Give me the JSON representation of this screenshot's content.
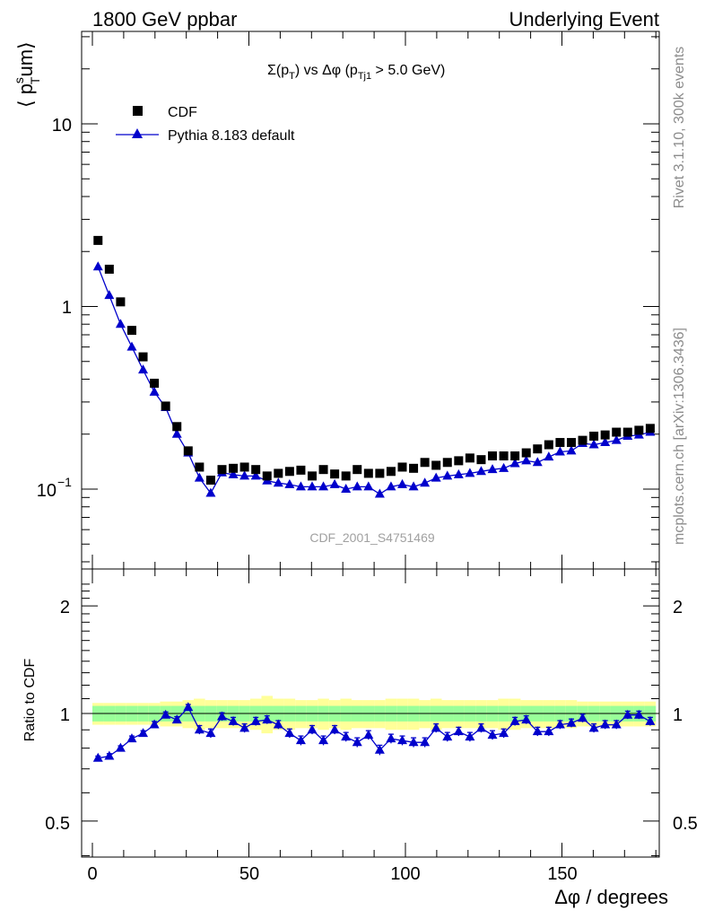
{
  "header": {
    "energy_label": "1800 GeV ppbar",
    "process_label": "Underlying Event"
  },
  "side_text": {
    "rivet": "Rivet 3.1.10,  300k events",
    "site": "mcplots.cern.ch [arXiv:1306.3436]"
  },
  "colors": {
    "cdf": "#000000",
    "pythia": "#0000cc",
    "band_inner": "#99ff99",
    "band_outer": "#ffff99"
  },
  "chart_data": [
    {
      "type": "scatter",
      "panel": "main",
      "title": "Σ(p_T) vs Δφ (p_Tj1 > 5.0 GeV)",
      "title_parts": {
        "sigma": "Σ(p",
        "sub_t": "T",
        "mid": ") vs Δφ (p",
        "sub_tj1": "Tj1",
        "end": " > 5.0 GeV)"
      },
      "ylabel": "⟨ p_T^sum⟩",
      "ylabel_parts": {
        "open": "⟨ p",
        "sup": "s",
        "sub": "T",
        "rest": "um⟩"
      },
      "yscale": "log",
      "ylim": [
        0.04,
        30
      ],
      "xlim": [
        -3.6,
        178.0
      ],
      "ytick_labels": {
        "ten": "10",
        "one": "1",
        "tenth_base": "10",
        "tenth_exp": "−1"
      },
      "watermark": "CDF_2001_S4751469",
      "legend": {
        "position": "top-left",
        "entries": [
          {
            "name": "CDF",
            "marker": "square"
          },
          {
            "name": "Pythia 8.183 default",
            "marker": "triangle-line"
          }
        ]
      },
      "x": [
        1.8,
        5.4,
        9.0,
        12.6,
        16.2,
        19.8,
        23.4,
        27.0,
        30.6,
        34.2,
        37.8,
        41.4,
        45.0,
        48.6,
        52.2,
        55.8,
        59.4,
        63.0,
        66.6,
        70.2,
        73.8,
        77.4,
        81.0,
        84.6,
        88.2,
        91.8,
        95.4,
        99.0,
        102.6,
        106.2,
        109.8,
        113.4,
        117.0,
        120.6,
        124.2,
        127.8,
        131.4,
        135.0,
        138.6,
        142.2,
        145.8,
        149.4,
        153.0,
        156.6,
        160.2,
        163.8,
        167.4,
        171.0,
        174.6,
        178.2
      ],
      "series": [
        {
          "name": "CDF",
          "values": [
            2.3,
            1.6,
            1.06,
            0.74,
            0.53,
            0.38,
            0.285,
            0.22,
            0.162,
            0.132,
            0.112,
            0.128,
            0.13,
            0.132,
            0.128,
            0.118,
            0.122,
            0.125,
            0.127,
            0.118,
            0.128,
            0.121,
            0.118,
            0.128,
            0.122,
            0.122,
            0.125,
            0.132,
            0.13,
            0.14,
            0.135,
            0.14,
            0.143,
            0.148,
            0.145,
            0.152,
            0.152,
            0.152,
            0.158,
            0.166,
            0.175,
            0.18,
            0.18,
            0.185,
            0.195,
            0.198,
            0.205,
            0.205,
            0.21,
            0.215
          ]
        },
        {
          "name": "Pythia 8.183 default",
          "values": [
            1.65,
            1.15,
            0.8,
            0.6,
            0.45,
            0.34,
            0.28,
            0.2,
            0.158,
            0.115,
            0.095,
            0.123,
            0.12,
            0.118,
            0.118,
            0.111,
            0.108,
            0.106,
            0.103,
            0.103,
            0.103,
            0.106,
            0.1,
            0.103,
            0.103,
            0.094,
            0.103,
            0.106,
            0.103,
            0.108,
            0.115,
            0.118,
            0.12,
            0.122,
            0.125,
            0.128,
            0.13,
            0.138,
            0.143,
            0.14,
            0.15,
            0.16,
            0.162,
            0.178,
            0.175,
            0.18,
            0.185,
            0.195,
            0.198,
            0.205
          ]
        }
      ]
    },
    {
      "type": "line",
      "panel": "ratio",
      "ylabel": "Ratio to CDF",
      "ylim": [
        0.38,
        2.4
      ],
      "xlim": [
        -3.6,
        178.0
      ],
      "xlabel": "Δφ / degrees",
      "xtick_labels": [
        "0",
        "50",
        "100",
        "150"
      ],
      "ytick_labels": [
        "0.5",
        "1",
        "2"
      ],
      "x": [
        1.8,
        5.4,
        9.0,
        12.6,
        16.2,
        19.8,
        23.4,
        27.0,
        30.6,
        34.2,
        37.8,
        41.4,
        45.0,
        48.6,
        52.2,
        55.8,
        59.4,
        63.0,
        66.6,
        70.2,
        73.8,
        77.4,
        81.0,
        84.6,
        88.2,
        91.8,
        95.4,
        99.0,
        102.6,
        106.2,
        109.8,
        113.4,
        117.0,
        120.6,
        124.2,
        127.8,
        131.4,
        135.0,
        138.6,
        142.2,
        145.8,
        149.4,
        153.0,
        156.6,
        160.2,
        163.8,
        167.4,
        171.0,
        174.6,
        178.2
      ],
      "ratio": [
        0.75,
        0.76,
        0.8,
        0.85,
        0.88,
        0.93,
        0.99,
        0.96,
        1.04,
        0.9,
        0.88,
        0.98,
        0.95,
        0.91,
        0.95,
        0.96,
        0.93,
        0.88,
        0.84,
        0.9,
        0.84,
        0.9,
        0.86,
        0.83,
        0.87,
        0.79,
        0.85,
        0.84,
        0.83,
        0.83,
        0.91,
        0.86,
        0.89,
        0.86,
        0.91,
        0.87,
        0.88,
        0.95,
        0.96,
        0.89,
        0.89,
        0.93,
        0.94,
        0.97,
        0.91,
        0.93,
        0.93,
        0.99,
        0.99,
        0.95
      ],
      "ratio_err": [
        0.01,
        0.012,
        0.012,
        0.015,
        0.015,
        0.02,
        0.02,
        0.02,
        0.02,
        0.025,
        0.025,
        0.025,
        0.025,
        0.025,
        0.025,
        0.025,
        0.025,
        0.025,
        0.025,
        0.025,
        0.025,
        0.025,
        0.025,
        0.025,
        0.025,
        0.025,
        0.025,
        0.025,
        0.025,
        0.025,
        0.025,
        0.025,
        0.025,
        0.025,
        0.025,
        0.025,
        0.025,
        0.025,
        0.025,
        0.025,
        0.025,
        0.025,
        0.025,
        0.025,
        0.025,
        0.025,
        0.025,
        0.025,
        0.025,
        0.025
      ],
      "band_inner": [
        0.05,
        0.05,
        0.05,
        0.05,
        0.05,
        0.05,
        0.05,
        0.05,
        0.05,
        0.05,
        0.05,
        0.05,
        0.05,
        0.05,
        0.05,
        0.05,
        0.05,
        0.05,
        0.05,
        0.05,
        0.05,
        0.05,
        0.05,
        0.05,
        0.05,
        0.05,
        0.05,
        0.05,
        0.05,
        0.05,
        0.05,
        0.05,
        0.05,
        0.05,
        0.05,
        0.05,
        0.05,
        0.05,
        0.05,
        0.05,
        0.05,
        0.05,
        0.05,
        0.05,
        0.05,
        0.05,
        0.05,
        0.05,
        0.05,
        0.05
      ],
      "band_outer": [
        0.07,
        0.07,
        0.07,
        0.07,
        0.07,
        0.07,
        0.08,
        0.08,
        0.09,
        0.1,
        0.09,
        0.09,
        0.09,
        0.09,
        0.1,
        0.12,
        0.1,
        0.1,
        0.09,
        0.09,
        0.1,
        0.09,
        0.1,
        0.09,
        0.09,
        0.09,
        0.1,
        0.1,
        0.1,
        0.09,
        0.1,
        0.09,
        0.09,
        0.09,
        0.09,
        0.09,
        0.1,
        0.1,
        0.09,
        0.09,
        0.09,
        0.09,
        0.09,
        0.08,
        0.08,
        0.08,
        0.08,
        0.08,
        0.08,
        0.08
      ]
    }
  ]
}
